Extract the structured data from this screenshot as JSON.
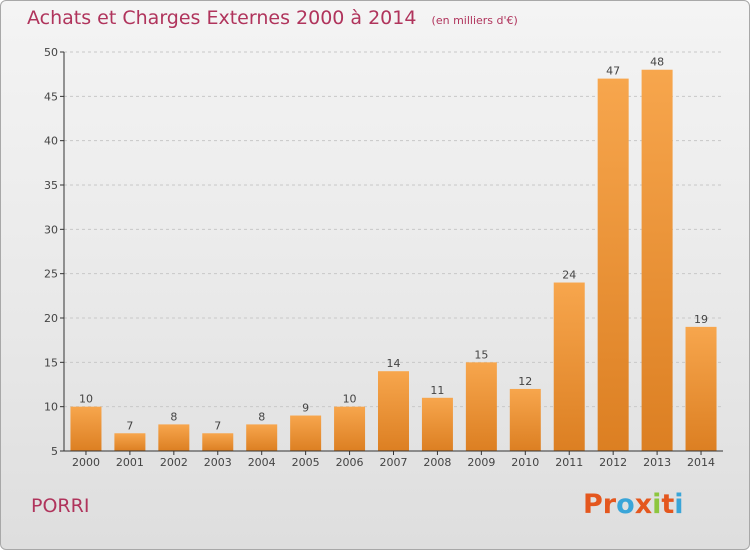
{
  "header": {
    "title": "Achats et Charges Externes 2000 à 2014",
    "subtitle": "(en milliers d'€)"
  },
  "footer": {
    "commune": "PORRI",
    "brand": "Proxiti",
    "brand_colors": [
      "#e4571e",
      "#e4571e",
      "#3aa5d8",
      "#e4571e",
      "#8dc63f",
      "#e4571e",
      "#3aa5d8"
    ]
  },
  "colors": {
    "title": "#b0345c",
    "bar_light": "#f7a64d",
    "bar_dark": "#dc7f22",
    "axis": "#333333",
    "grid": "#c8c8c8"
  },
  "chart_data": {
    "type": "bar",
    "title": "Achats et Charges Externes 2000 à 2014",
    "subtitle": "(en milliers d'€)",
    "categories": [
      "2000",
      "2001",
      "2002",
      "2003",
      "2004",
      "2005",
      "2006",
      "2007",
      "2008",
      "2009",
      "2010",
      "2011",
      "2012",
      "2013",
      "2014"
    ],
    "values": [
      10,
      7,
      8,
      7,
      8,
      9,
      10,
      14,
      11,
      15,
      12,
      24,
      47,
      48,
      19
    ],
    "ylim": [
      5,
      50
    ],
    "yticks": [
      5,
      10,
      15,
      20,
      25,
      30,
      35,
      40,
      45,
      50
    ],
    "grid": true,
    "xlabel": "",
    "ylabel": ""
  }
}
